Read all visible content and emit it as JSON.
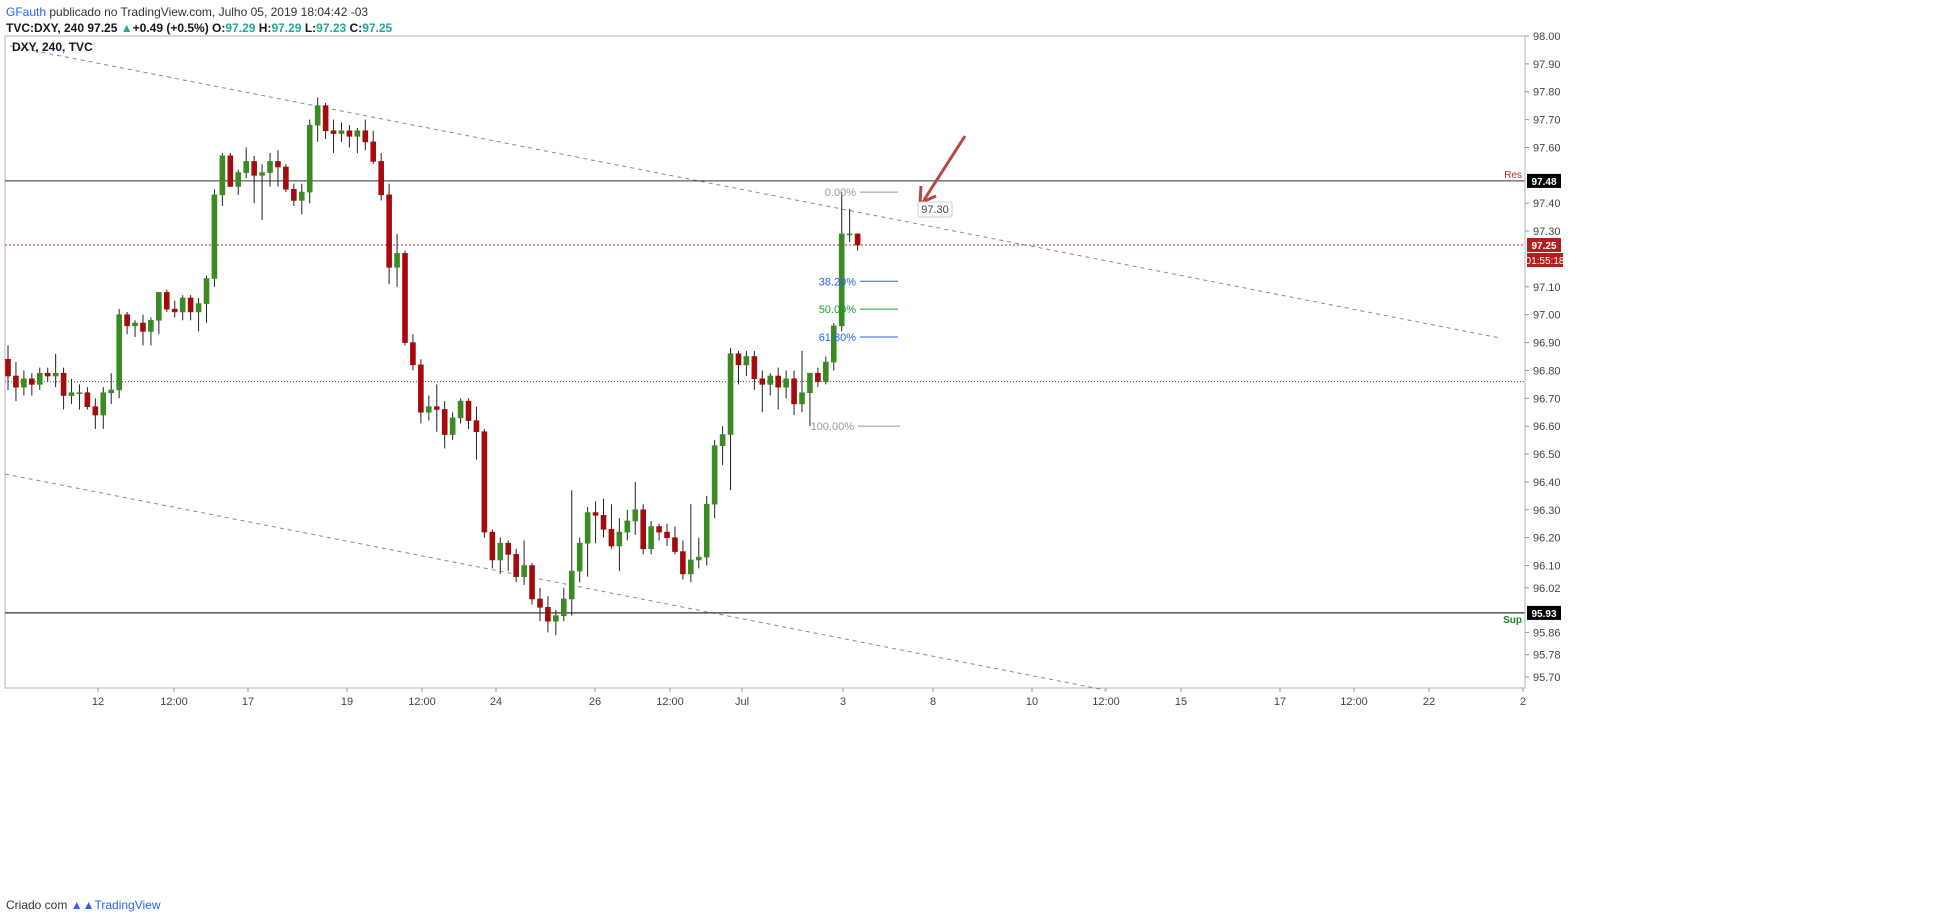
{
  "header": {
    "user": "GFauth",
    "published": " publicado no TradingView.com, Julho 05, 2019 18:04:42 -03",
    "symbol": "TVC:DXY, 240",
    "price": "97.25",
    "change": "+0.49 (+0.5%)",
    "o_label": "O:",
    "o": "97.29",
    "h_label": "H:",
    "h": "97.29",
    "l_label": "L:",
    "l": "97.23",
    "c_label": "C:",
    "c": "97.25"
  },
  "pane_title": "DXY, 240, TVC",
  "footer": {
    "prefix": "Criado com",
    "brand": "TradingView"
  },
  "colors": {
    "up": "#3c8a23",
    "down": "#a40c0c",
    "fib_38": "#2962ff",
    "fib_50": "#1aa02a",
    "fib_61": "#2962ff",
    "fib_edge": "#999999",
    "res": "#c62828",
    "sup": "#1b8a1b"
  },
  "chart_data": {
    "type": "candlestick",
    "symbol": "DXY",
    "interval": "240",
    "ylim": [
      95.63,
      98.01
    ],
    "y_ticks": [
      "98.00",
      "97.90",
      "97.80",
      "97.70",
      "97.60",
      "97.40",
      "97.30",
      "97.10",
      "97.00",
      "96.90",
      "96.80",
      "96.70",
      "96.60",
      "96.50",
      "96.40",
      "96.30",
      "96.20",
      "96.10",
      "96.02",
      "95.86",
      "95.78",
      "95.70"
    ],
    "x_ticks": [
      {
        "label": "12",
        "px": 98
      },
      {
        "label": "12:00",
        "px": 174
      },
      {
        "label": "17",
        "px": 248
      },
      {
        "label": "19",
        "px": 347
      },
      {
        "label": "12:00",
        "px": 422
      },
      {
        "label": "24",
        "px": 496
      },
      {
        "label": "26",
        "px": 595
      },
      {
        "label": "12:00",
        "px": 670
      },
      {
        "label": "Jul",
        "px": 742
      },
      {
        "label": "3",
        "px": 843
      },
      {
        "label": "8",
        "px": 933
      },
      {
        "label": "10",
        "px": 1032
      },
      {
        "label": "12:00",
        "px": 1106
      },
      {
        "label": "15",
        "px": 1181
      },
      {
        "label": "17",
        "px": 1280
      },
      {
        "label": "12:00",
        "px": 1354
      },
      {
        "label": "22",
        "px": 1429
      },
      {
        "label": "2",
        "px": 1523
      }
    ],
    "levels": {
      "resistance": {
        "value": 97.48,
        "label": "97.48",
        "tag": "Res"
      },
      "support": {
        "value": 95.93,
        "label": "95.93",
        "tag": "Sup"
      },
      "last_price": {
        "value": 97.25,
        "label": "97.25",
        "countdown": "01:55:18"
      },
      "mid_line": 96.76
    },
    "fibonacci": [
      {
        "label": "0.00%",
        "value": 97.44
      },
      {
        "label": "38.20%",
        "value": 97.12
      },
      {
        "label": "50.00%",
        "value": 97.02
      },
      {
        "label": "61.80%",
        "value": 96.92
      },
      {
        "label": "100.00%",
        "value": 96.6
      }
    ],
    "annotation": {
      "label": "97.30"
    },
    "candles": [
      [
        96.84,
        96.89,
        96.73,
        96.78
      ],
      [
        96.78,
        96.83,
        96.69,
        96.74
      ],
      [
        96.74,
        96.8,
        96.71,
        96.77
      ],
      [
        96.77,
        96.79,
        96.71,
        96.75
      ],
      [
        96.75,
        96.81,
        96.73,
        96.79
      ],
      [
        96.79,
        96.81,
        96.76,
        96.78
      ],
      [
        96.78,
        96.86,
        96.74,
        96.79
      ],
      [
        96.79,
        96.81,
        96.66,
        96.71
      ],
      [
        96.71,
        96.77,
        96.68,
        96.72
      ],
      [
        96.72,
        96.75,
        96.66,
        96.72
      ],
      [
        96.72,
        96.74,
        96.66,
        96.67
      ],
      [
        96.67,
        96.7,
        96.59,
        96.64
      ],
      [
        96.64,
        96.74,
        96.59,
        96.72
      ],
      [
        96.72,
        96.79,
        96.68,
        96.73
      ],
      [
        96.73,
        97.02,
        96.7,
        97.0
      ],
      [
        97.0,
        97.01,
        96.93,
        96.96
      ],
      [
        96.96,
        96.98,
        96.92,
        96.97
      ],
      [
        96.97,
        97.0,
        96.89,
        96.94
      ],
      [
        96.94,
        96.99,
        96.89,
        96.98
      ],
      [
        96.98,
        97.08,
        96.93,
        97.08
      ],
      [
        97.08,
        97.09,
        97.01,
        97.02
      ],
      [
        97.02,
        97.05,
        96.99,
        97.01
      ],
      [
        97.01,
        97.07,
        96.98,
        97.06
      ],
      [
        97.06,
        97.07,
        96.98,
        97.01
      ],
      [
        97.01,
        97.06,
        96.94,
        97.04
      ],
      [
        97.04,
        97.14,
        96.97,
        97.13
      ],
      [
        97.13,
        97.45,
        97.1,
        97.43
      ],
      [
        97.43,
        97.58,
        97.39,
        97.57
      ],
      [
        97.57,
        97.58,
        97.46,
        97.46
      ],
      [
        97.46,
        97.52,
        97.43,
        97.51
      ],
      [
        97.51,
        97.6,
        97.49,
        97.55
      ],
      [
        97.55,
        97.57,
        97.4,
        97.5
      ],
      [
        97.5,
        97.54,
        97.34,
        97.51
      ],
      [
        97.51,
        97.58,
        97.46,
        97.55
      ],
      [
        97.55,
        97.59,
        97.46,
        97.53
      ],
      [
        97.53,
        97.54,
        97.44,
        97.45
      ],
      [
        97.45,
        97.47,
        97.39,
        97.41
      ],
      [
        97.41,
        97.47,
        97.36,
        97.44
      ],
      [
        97.44,
        97.7,
        97.4,
        97.68
      ],
      [
        97.68,
        97.78,
        97.62,
        97.75
      ],
      [
        97.75,
        97.76,
        97.63,
        97.66
      ],
      [
        97.66,
        97.7,
        97.58,
        97.65
      ],
      [
        97.65,
        97.69,
        97.62,
        97.66
      ],
      [
        97.66,
        97.68,
        97.6,
        97.64
      ],
      [
        97.64,
        97.67,
        97.58,
        97.66
      ],
      [
        97.66,
        97.7,
        97.59,
        97.62
      ],
      [
        97.62,
        97.66,
        97.54,
        97.55
      ],
      [
        97.55,
        97.58,
        97.41,
        97.43
      ],
      [
        97.43,
        97.47,
        97.11,
        97.17
      ],
      [
        97.17,
        97.29,
        97.1,
        97.22
      ],
      [
        97.22,
        97.23,
        96.89,
        96.9
      ],
      [
        96.9,
        96.93,
        96.8,
        96.82
      ],
      [
        96.82,
        96.84,
        96.61,
        96.65
      ],
      [
        96.65,
        96.71,
        96.62,
        96.67
      ],
      [
        96.67,
        96.75,
        96.58,
        96.66
      ],
      [
        96.66,
        96.69,
        96.52,
        96.57
      ],
      [
        96.57,
        96.65,
        96.55,
        96.63
      ],
      [
        96.63,
        96.7,
        96.61,
        96.69
      ],
      [
        96.69,
        96.7,
        96.59,
        96.62
      ],
      [
        96.62,
        96.67,
        96.48,
        96.58
      ],
      [
        96.58,
        96.59,
        96.2,
        96.22
      ],
      [
        96.22,
        96.23,
        96.09,
        96.12
      ],
      [
        96.12,
        96.2,
        96.07,
        96.18
      ],
      [
        96.18,
        96.19,
        96.08,
        96.14
      ],
      [
        96.14,
        96.16,
        96.04,
        96.06
      ],
      [
        96.06,
        96.19,
        96.03,
        96.1
      ],
      [
        96.1,
        96.11,
        95.96,
        95.98
      ],
      [
        95.98,
        96.02,
        95.9,
        95.95
      ],
      [
        95.95,
        95.99,
        95.86,
        95.9
      ],
      [
        95.9,
        95.94,
        95.85,
        95.92
      ],
      [
        95.92,
        96.02,
        95.9,
        95.98
      ],
      [
        95.98,
        96.37,
        95.92,
        96.08
      ],
      [
        96.08,
        96.2,
        96.04,
        96.18
      ],
      [
        96.18,
        96.31,
        96.06,
        96.29
      ],
      [
        96.29,
        96.33,
        96.18,
        96.28
      ],
      [
        96.28,
        96.34,
        96.2,
        96.23
      ],
      [
        96.23,
        96.32,
        96.16,
        96.17
      ],
      [
        96.17,
        96.27,
        96.08,
        96.22
      ],
      [
        96.22,
        96.3,
        96.19,
        96.26
      ],
      [
        96.26,
        96.4,
        96.21,
        96.3
      ],
      [
        96.3,
        96.32,
        96.14,
        96.16
      ],
      [
        96.16,
        96.26,
        96.14,
        96.24
      ],
      [
        96.24,
        96.25,
        96.19,
        96.22
      ],
      [
        96.22,
        96.25,
        96.17,
        96.2
      ],
      [
        96.2,
        96.24,
        96.14,
        96.15
      ],
      [
        96.15,
        96.19,
        96.05,
        96.07
      ],
      [
        96.07,
        96.32,
        96.04,
        96.12
      ],
      [
        96.12,
        96.2,
        96.09,
        96.13
      ],
      [
        96.13,
        96.35,
        96.1,
        96.32
      ],
      [
        96.32,
        96.55,
        96.27,
        96.53
      ],
      [
        96.53,
        96.6,
        96.46,
        96.57
      ],
      [
        96.57,
        96.88,
        96.37,
        96.86
      ],
      [
        96.86,
        96.87,
        96.75,
        96.82
      ],
      [
        96.82,
        96.87,
        96.78,
        96.85
      ],
      [
        96.85,
        96.87,
        96.73,
        96.77
      ],
      [
        96.77,
        96.8,
        96.65,
        96.75
      ],
      [
        96.75,
        96.79,
        96.71,
        96.78
      ],
      [
        96.78,
        96.81,
        96.66,
        96.74
      ],
      [
        96.74,
        96.8,
        96.7,
        96.77
      ],
      [
        96.77,
        96.8,
        96.64,
        96.68
      ],
      [
        96.68,
        96.87,
        96.65,
        96.72
      ],
      [
        96.72,
        96.78,
        96.6,
        96.79
      ],
      [
        96.79,
        96.81,
        96.74,
        96.76
      ],
      [
        96.76,
        96.85,
        96.75,
        96.83
      ],
      [
        96.83,
        96.97,
        96.8,
        96.96
      ],
      [
        96.96,
        97.44,
        96.94,
        97.29
      ],
      [
        97.29,
        97.38,
        97.26,
        97.29
      ],
      [
        97.29,
        97.29,
        97.23,
        97.25
      ]
    ]
  }
}
